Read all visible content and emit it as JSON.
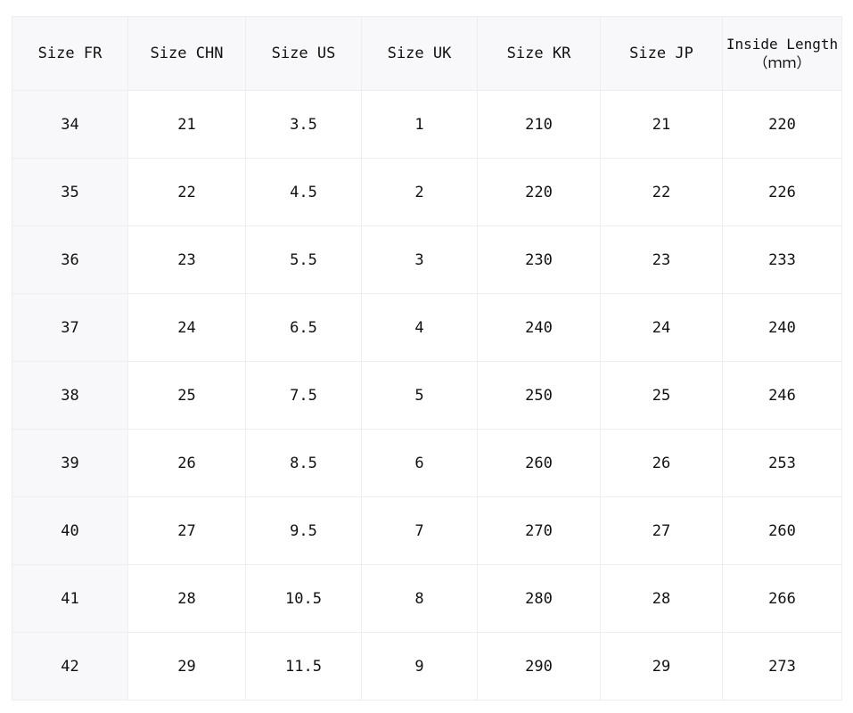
{
  "headers": [
    "Size FR",
    "Size CHN",
    "Size US",
    "Size UK",
    "Size KR",
    "Size JP",
    "Inside Length",
    "（ｍｍ）"
  ],
  "rows": [
    [
      "34",
      "21",
      "3.5",
      "1",
      "210",
      "21",
      "220"
    ],
    [
      "35",
      "22",
      "4.5",
      "2",
      "220",
      "22",
      "226"
    ],
    [
      "36",
      "23",
      "5.5",
      "3",
      "230",
      "23",
      "233"
    ],
    [
      "37",
      "24",
      "6.5",
      "4",
      "240",
      "24",
      "240"
    ],
    [
      "38",
      "25",
      "7.5",
      "5",
      "250",
      "25",
      "246"
    ],
    [
      "39",
      "26",
      "8.5",
      "6",
      "260",
      "26",
      "253"
    ],
    [
      "40",
      "27",
      "9.5",
      "7",
      "270",
      "27",
      "260"
    ],
    [
      "41",
      "28",
      "10.5",
      "8",
      "280",
      "28",
      "266"
    ],
    [
      "42",
      "29",
      "11.5",
      "9",
      "290",
      "29",
      "273"
    ]
  ]
}
